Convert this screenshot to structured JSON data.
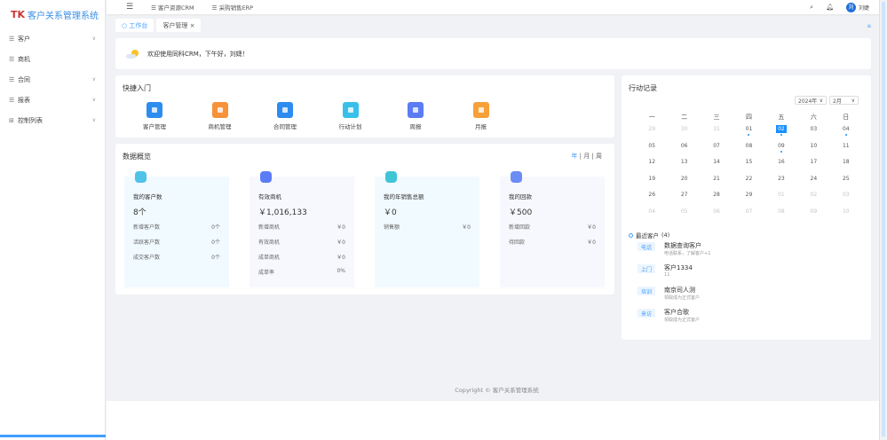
{
  "app": {
    "title": "客户关系管理系统"
  },
  "sidebar": {
    "items": [
      {
        "label": "客户",
        "icon": "list-icon",
        "expandable": true
      },
      {
        "label": "商机",
        "icon": "list-icon",
        "expandable": false
      },
      {
        "label": "合同",
        "icon": "list-icon",
        "expandable": true
      },
      {
        "label": "报表",
        "icon": "list-icon",
        "expandable": true
      },
      {
        "label": "控制列表",
        "icon": "grid-icon",
        "expandable": true
      }
    ]
  },
  "topbar": {
    "nav": [
      "客户资源CRM",
      "采购销售ERP"
    ],
    "user": "刘婕",
    "avatar": "刘"
  },
  "tabs": [
    {
      "label": "工作台",
      "active": true
    },
    {
      "label": "客户管理",
      "active": false
    }
  ],
  "welcome": "欢迎使用同科CRM，下午好，刘婕！",
  "quick": {
    "title": "快捷入门",
    "items": [
      {
        "label": "客户管理",
        "color": "#2d8cf0"
      },
      {
        "label": "商机管理",
        "color": "#f7923a"
      },
      {
        "label": "合同管理",
        "color": "#2d8cf0"
      },
      {
        "label": "行动计划",
        "color": "#38c0e8"
      },
      {
        "label": "周报",
        "color": "#5b7cf5"
      },
      {
        "label": "月报",
        "color": "#f7a03a"
      }
    ]
  },
  "overview": {
    "title": "数据概览",
    "periods": [
      "年",
      "月",
      "周"
    ],
    "active_period": "年",
    "cards": [
      {
        "title": "我的客户数",
        "value": "8个",
        "rows": [
          [
            "新增客户数",
            "0个"
          ],
          [
            "活跃客户数",
            "0个"
          ],
          [
            "成交客户数",
            "0个"
          ]
        ],
        "color": "#4fc3e8",
        "bg": "#f1faff"
      },
      {
        "title": "有效商机",
        "value": "￥1,016,133",
        "rows": [
          [
            "新增商机",
            "￥0"
          ],
          [
            "有效商机",
            "￥0"
          ],
          [
            "成单商机",
            "￥0"
          ],
          [
            "成单率",
            "0%"
          ]
        ],
        "color": "#5b7cf5",
        "bg": "#f7f8fd"
      },
      {
        "title": "我的年销售总额",
        "value": "￥0",
        "rows": [
          [
            "销售额",
            "￥0"
          ]
        ],
        "color": "#3fc6d6",
        "bg": "#f1faff"
      },
      {
        "title": "我的回款",
        "value": "￥500",
        "rows": [
          [
            "新增回款",
            "￥0"
          ],
          [
            "待回款",
            "￥0"
          ]
        ],
        "color": "#6b8cf5",
        "bg": "#f7f8fd"
      }
    ]
  },
  "action": {
    "title": "行动记录",
    "year": "2024年",
    "month": "2月",
    "weekdays": [
      "一",
      "二",
      "三",
      "四",
      "五",
      "六",
      "日"
    ],
    "days": [
      "29",
      "30",
      "31",
      "01",
      "02",
      "03",
      "04",
      "05",
      "06",
      "07",
      "08",
      "09",
      "10",
      "11",
      "12",
      "13",
      "14",
      "15",
      "16",
      "17",
      "18",
      "19",
      "20",
      "21",
      "22",
      "23",
      "24",
      "25",
      "26",
      "27",
      "28",
      "29",
      "01",
      "02",
      "03",
      "04",
      "05",
      "06",
      "07",
      "08",
      "09",
      "10"
    ],
    "selected": "02",
    "dots": [
      "01",
      "02",
      "04",
      "09"
    ],
    "recent_title": "最近客户",
    "recent_count": "(4)",
    "recent": [
      {
        "tag": "电话",
        "name": "数据查询客户",
        "sub": "电话联系，了解客户+1"
      },
      {
        "tag": "上门",
        "name": "客户1334",
        "sub": "11"
      },
      {
        "tag": "培训",
        "name": "南京司人测",
        "sub": "领取成为正式客户"
      },
      {
        "tag": "来访",
        "name": "客户合歌",
        "sub": "领取成为正式客户"
      }
    ]
  },
  "footer": "Copyright © 客户关系管理系统"
}
